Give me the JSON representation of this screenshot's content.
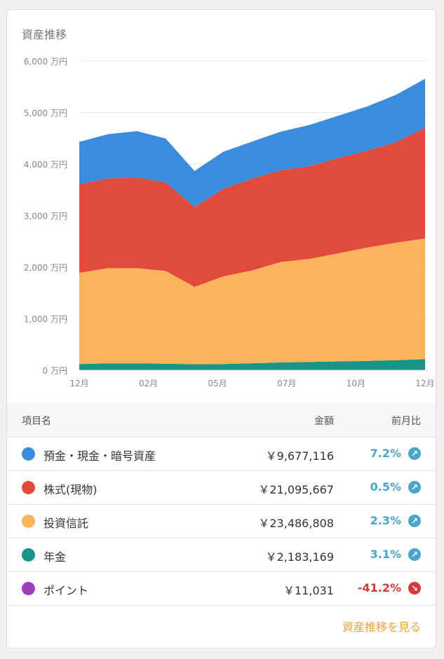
{
  "card": {
    "title": "資産推移",
    "link_label": "資産推移を見る"
  },
  "chart_data": {
    "type": "area",
    "stacked": true,
    "x_ticks": [
      "12月",
      "02月",
      "05月",
      "07月",
      "10月",
      "12月"
    ],
    "y_ticks": [
      "0 万円",
      "1,000 万円",
      "2,000 万円",
      "3,000 万円",
      "4,000 万円",
      "5,000 万円",
      "6,000 万円"
    ],
    "ylim": [
      0,
      6000
    ],
    "y_unit": "万円",
    "grid": true,
    "x": [
      0,
      1,
      2,
      3,
      4,
      5,
      6,
      7,
      8,
      9,
      10,
      11,
      12
    ],
    "series": [
      {
        "name": "年金",
        "color": "#1a9488",
        "values": [
          120,
          130,
          130,
          125,
          115,
          120,
          135,
          150,
          160,
          170,
          180,
          195,
          215
        ]
      },
      {
        "name": "投資信託",
        "color": "#fbb45c",
        "values": [
          1770,
          1850,
          1850,
          1800,
          1500,
          1700,
          1800,
          1950,
          2000,
          2100,
          2200,
          2280,
          2340
        ]
      },
      {
        "name": "株式(現物)",
        "color": "#e14b3b",
        "values": [
          1720,
          1740,
          1760,
          1720,
          1550,
          1700,
          1780,
          1780,
          1800,
          1850,
          1880,
          1950,
          2150
        ]
      },
      {
        "name": "預金・現金・暗号資産",
        "color": "#3a8cdc",
        "values": [
          820,
          860,
          900,
          850,
          700,
          720,
          720,
          750,
          800,
          820,
          860,
          920,
          950
        ]
      }
    ]
  },
  "table": {
    "headers": {
      "name": "項目名",
      "amount": "金額",
      "change": "前月比"
    },
    "rows": [
      {
        "name": "預金・現金・暗号資産",
        "amount": "￥9,677,116",
        "change": "7.2%",
        "direction": "up",
        "color": "#3a8cdc"
      },
      {
        "name": "株式(現物)",
        "amount": "￥21,095,667",
        "change": "0.5%",
        "direction": "up",
        "color": "#e14b3b"
      },
      {
        "name": "投資信託",
        "amount": "￥23,486,808",
        "change": "2.3%",
        "direction": "up",
        "color": "#fbb45c"
      },
      {
        "name": "年金",
        "amount": "￥2,183,169",
        "change": "3.1%",
        "direction": "up",
        "color": "#1a9488"
      },
      {
        "name": "ポイント",
        "amount": "￥11,031",
        "change": "-41.2%",
        "direction": "down",
        "color": "#9c3fb8"
      }
    ]
  },
  "colors": {
    "up": "#4aa3c9",
    "down": "#d43a3a",
    "link": "#f5a03a"
  }
}
